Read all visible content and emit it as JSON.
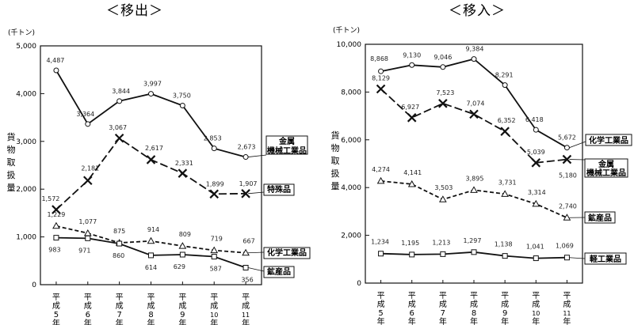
{
  "chart_data": [
    {
      "type": "line",
      "title": "＜移出＞",
      "unit": "(千トン)",
      "ylabel": "貨物取扱量",
      "categories": [
        "平成5年",
        "平成6年",
        "平成7年",
        "平成8年",
        "平成9年",
        "平成10年",
        "平成11年"
      ],
      "yticks": [
        "0",
        "1,000",
        "2,000",
        "3,000",
        "4,000",
        "5,000"
      ],
      "ylim": [
        0,
        5000
      ],
      "series": [
        {
          "name": "金属機械工業品",
          "legend": [
            "金属",
            "機械工業品"
          ],
          "marker": "circle",
          "dash": "solid",
          "values": [
            4487,
            3364,
            3844,
            3997,
            3750,
            2853,
            2673
          ],
          "labels": [
            "4,487",
            "3,364",
            "3,844",
            "3,997",
            "3,750",
            "2,853",
            "2,673"
          ]
        },
        {
          "name": "特殊品",
          "legend": [
            "特殊品"
          ],
          "marker": "x",
          "dash": "longdash",
          "values": [
            1572,
            2181,
            3067,
            2617,
            2331,
            1899,
            1907
          ],
          "labels": [
            "1,572",
            "2,181",
            "3,067",
            "2,617",
            "2,331",
            "1,899",
            "1,907"
          ]
        },
        {
          "name": "化学工業品",
          "legend": [
            "化学工業品"
          ],
          "marker": "triangle",
          "dash": "dashed",
          "values": [
            1229,
            1077,
            875,
            914,
            809,
            719,
            667
          ],
          "labels": [
            "1,229",
            "1,077",
            "875",
            "914",
            "809",
            "719",
            "667"
          ]
        },
        {
          "name": "鉱産品",
          "legend": [
            "鉱産品"
          ],
          "marker": "square",
          "dash": "solid",
          "values": [
            983,
            971,
            860,
            614,
            629,
            587,
            356
          ],
          "labels": [
            "983",
            "971",
            "860",
            "614",
            "629",
            "587",
            "356"
          ]
        }
      ]
    },
    {
      "type": "line",
      "title": "＜移入＞",
      "unit": "(千トン)",
      "ylabel": "貨物取扱量",
      "categories": [
        "平成5年",
        "平成6年",
        "平成7年",
        "平成8年",
        "平成9年",
        "平成10年",
        "平成11年"
      ],
      "yticks": [
        "0",
        "2,000",
        "4,000",
        "6,000",
        "8,000",
        "10,000"
      ],
      "ylim": [
        0,
        10000
      ],
      "series": [
        {
          "name": "化学工業品",
          "legend": [
            "化学工業品"
          ],
          "marker": "circle",
          "dash": "solid",
          "values": [
            8868,
            9130,
            9046,
            9384,
            8291,
            6418,
            5672
          ],
          "labels": [
            "8,868",
            "9,130",
            "9,046",
            "9,384",
            "8,291",
            "6,418",
            "5,672"
          ]
        },
        {
          "name": "金属機械工業品",
          "legend": [
            "金属",
            "機械工業品"
          ],
          "marker": "x",
          "dash": "longdash",
          "values": [
            8129,
            6927,
            7523,
            7074,
            6352,
            5039,
            5180
          ],
          "labels": [
            "8,129",
            "6,927",
            "7,523",
            "7,074",
            "6,352",
            "5,039",
            "5,180"
          ]
        },
        {
          "name": "鉱産品",
          "legend": [
            "鉱産品"
          ],
          "marker": "triangle",
          "dash": "dashed",
          "values": [
            4274,
            4141,
            3503,
            3895,
            3731,
            3314,
            2740
          ],
          "labels": [
            "4,274",
            "4,141",
            "3,503",
            "3,895",
            "3,731",
            "3,314",
            "2,740"
          ]
        },
        {
          "name": "軽工業品",
          "legend": [
            "軽工業品"
          ],
          "marker": "square",
          "dash": "solid",
          "values": [
            1234,
            1195,
            1213,
            1297,
            1138,
            1041,
            1069
          ],
          "labels": [
            "1,234",
            "1,195",
            "1,213",
            "1,297",
            "1,138",
            "1,041",
            "1,069"
          ]
        }
      ]
    }
  ]
}
